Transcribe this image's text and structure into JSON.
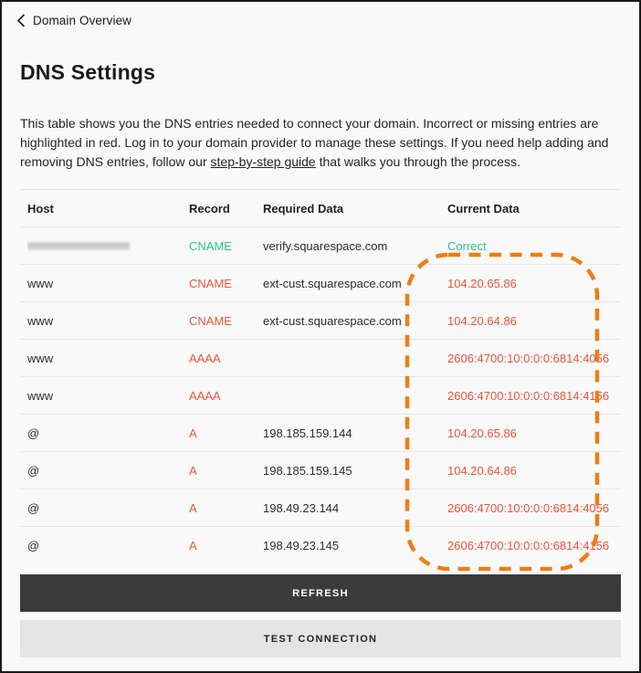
{
  "header": {
    "back_label": "Domain Overview",
    "title": "DNS Settings"
  },
  "icons": {
    "back": "chevron-left"
  },
  "description": {
    "text_before_link": "This table shows you the DNS entries needed to connect your domain. Incorrect or missing entries are highlighted in red. Log in to your domain provider to manage these settings. If you need help adding and removing DNS entries, follow our ",
    "link_label": "step-by-step guide",
    "text_after_link": " that walks you through the process."
  },
  "table": {
    "headers": [
      "Host",
      "Record",
      "Required Data",
      "Current Data"
    ],
    "rows": [
      {
        "host": "",
        "host_redacted": true,
        "record": "CNAME",
        "required": "verify.squarespace.com",
        "current": "Correct",
        "status": "ok"
      },
      {
        "host": "www",
        "host_redacted": false,
        "record": "CNAME",
        "required": "ext-cust.squarespace.com",
        "current": "104.20.65.86",
        "status": "error"
      },
      {
        "host": "www",
        "host_redacted": false,
        "record": "CNAME",
        "required": "ext-cust.squarespace.com",
        "current": "104.20.64.86",
        "status": "error"
      },
      {
        "host": "www",
        "host_redacted": false,
        "record": "AAAA",
        "required": "",
        "current": "2606:4700:10:0:0:0:6814:4056",
        "status": "error"
      },
      {
        "host": "www",
        "host_redacted": false,
        "record": "AAAA",
        "required": "",
        "current": "2606:4700:10:0:0:0:6814:4156",
        "status": "error"
      },
      {
        "host": "@",
        "host_redacted": false,
        "record": "A",
        "required": "198.185.159.144",
        "current": "104.20.65.86",
        "status": "error"
      },
      {
        "host": "@",
        "host_redacted": false,
        "record": "A",
        "required": "198.185.159.145",
        "current": "104.20.64.86",
        "status": "error"
      },
      {
        "host": "@",
        "host_redacted": false,
        "record": "A",
        "required": "198.49.23.144",
        "current": "2606:4700:10:0:0:0:6814:4056",
        "status": "error"
      },
      {
        "host": "@",
        "host_redacted": false,
        "record": "A",
        "required": "198.49.23.145",
        "current": "2606:4700:10:0:0:0:6814:4156",
        "status": "error"
      }
    ]
  },
  "buttons": {
    "refresh": "REFRESH",
    "test_connection": "TEST CONNECTION"
  },
  "colors": {
    "success_green": "#2ebe88",
    "error_red": "#e9543c",
    "highlight_orange": "#ee7d16",
    "refresh_button_bg": "#3b3b3b",
    "test_button_bg": "#e4e4e4"
  }
}
